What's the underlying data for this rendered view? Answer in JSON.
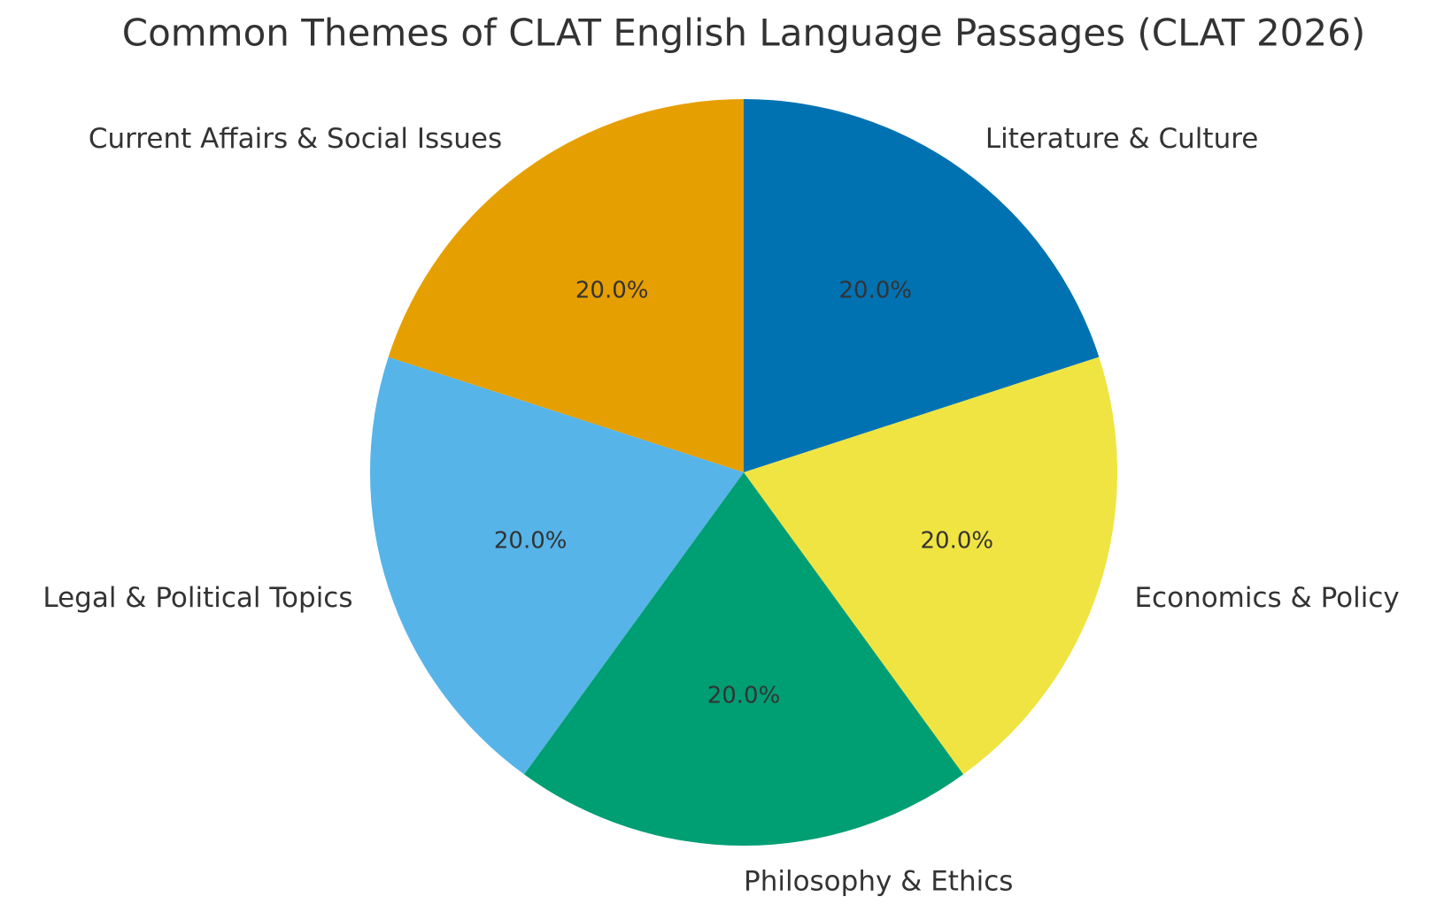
{
  "chart_data": {
    "type": "pie",
    "title": "Common Themes of CLAT English Language Passages (CLAT 2026)",
    "categories": [
      "Literature & Culture",
      "Economics & Policy",
      "Philosophy & Ethics",
      "Legal & Political Topics",
      "Current Affairs & Social Issues"
    ],
    "values": [
      20,
      20,
      20,
      20,
      20
    ],
    "value_labels": [
      "20.0%",
      "20.0%",
      "20.0%",
      "20.0%",
      "20.0%"
    ],
    "colors": [
      "#0072b2",
      "#f0e442",
      "#009e73",
      "#56b4e9",
      "#e69f00"
    ],
    "start_angle": 90,
    "clockwise": true
  }
}
